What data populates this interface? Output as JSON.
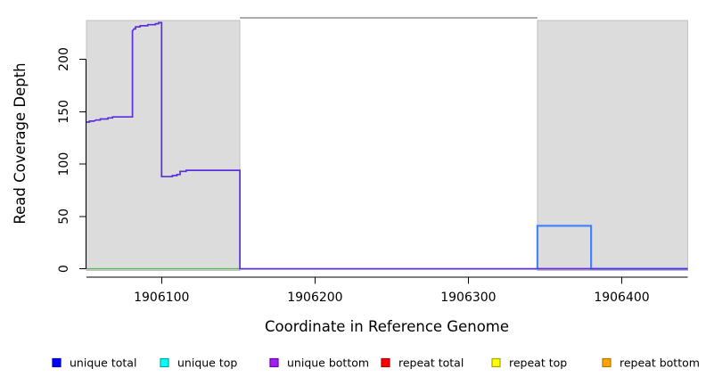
{
  "chart_data": {
    "type": "line",
    "title": "",
    "xlabel": "Coordinate in Reference Genome",
    "ylabel": "Read Coverage Depth",
    "xlim": [
      1906051,
      1906443
    ],
    "ylim": [
      -8,
      240
    ],
    "xticks": [
      1906100,
      1906200,
      1906300,
      1906400
    ],
    "yticks": [
      0,
      50,
      100,
      150,
      200
    ],
    "grid": false,
    "background": "#ffffff",
    "axis_color": "#000000",
    "shaded_regions": [
      {
        "name": "shaded-region-left",
        "x0": 1906051,
        "x1": 1906151,
        "y0": -1.6,
        "y1": 237,
        "fill": "#dcdcdc",
        "border": "#c0c0c0"
      },
      {
        "name": "shaded-region-right",
        "x0": 1906345,
        "x1": 1906443,
        "y0": -1.6,
        "y1": 237,
        "fill": "#dcdcdc",
        "border": "#c0c0c0"
      }
    ],
    "series": [
      {
        "name": "green baseline (left region)",
        "color": "#58b858",
        "width": 1.4,
        "points": [
          [
            1906051,
            0
          ],
          [
            1906151,
            0
          ]
        ]
      },
      {
        "name": "repeat total baseline",
        "color": "#e03a3a",
        "width": 1.6,
        "points": [
          [
            1906345,
            0
          ],
          [
            1906381,
            0
          ]
        ]
      },
      {
        "name": "clipped line at plot top (gray)",
        "color": "#999999",
        "width": 1.6,
        "points": [
          [
            1906151,
            239.5
          ],
          [
            1906345,
            239.5
          ]
        ]
      },
      {
        "name": "unique total step (bright blue)",
        "color": "#4485f5",
        "width": 2.2,
        "points": [
          [
            1906345,
            0
          ],
          [
            1906345,
            41
          ],
          [
            1906380,
            41
          ],
          [
            1906380,
            0
          ],
          [
            1906443,
            0
          ]
        ]
      },
      {
        "name": "unique coverage (blue-violet step line)",
        "color": "#5b2ee0",
        "width": 1.7,
        "points": [
          [
            1906051,
            140
          ],
          [
            1906053,
            140
          ],
          [
            1906053,
            141
          ],
          [
            1906056,
            141
          ],
          [
            1906057,
            142
          ],
          [
            1906060,
            142
          ],
          [
            1906060,
            143
          ],
          [
            1906065,
            143
          ],
          [
            1906065,
            144
          ],
          [
            1906068,
            144
          ],
          [
            1906068,
            145
          ],
          [
            1906081,
            145
          ],
          [
            1906081,
            227
          ],
          [
            1906082,
            229
          ],
          [
            1906083,
            229
          ],
          [
            1906083,
            231
          ],
          [
            1906086,
            231
          ],
          [
            1906086,
            232
          ],
          [
            1906091,
            232
          ],
          [
            1906091,
            233
          ],
          [
            1906096,
            233
          ],
          [
            1906096,
            234
          ],
          [
            1906098,
            234
          ],
          [
            1906098,
            235
          ],
          [
            1906100,
            235
          ],
          [
            1906100,
            88
          ],
          [
            1906107,
            88
          ],
          [
            1906107,
            89
          ],
          [
            1906110,
            89
          ],
          [
            1906110,
            90
          ],
          [
            1906112,
            90
          ],
          [
            1906112,
            93
          ],
          [
            1906116,
            93
          ],
          [
            1906116,
            94
          ],
          [
            1906151,
            94
          ],
          [
            1906151,
            0
          ],
          [
            1906443,
            0
          ]
        ]
      }
    ],
    "legend": {
      "position": "bottom",
      "entries": [
        {
          "label": "unique total",
          "fill": "#0000ff",
          "border": "#0000b2"
        },
        {
          "label": "unique top",
          "fill": "#00ffff",
          "border": "#00a6a6"
        },
        {
          "label": "unique bottom",
          "fill": "#a020f0",
          "border": "#6f00b8"
        },
        {
          "label": "repeat total",
          "fill": "#ff0000",
          "border": "#b20000"
        },
        {
          "label": "repeat top",
          "fill": "#ffff00",
          "border": "#a6a600"
        },
        {
          "label": "repeat bottom",
          "fill": "#ffa500",
          "border": "#b87400"
        }
      ]
    }
  }
}
